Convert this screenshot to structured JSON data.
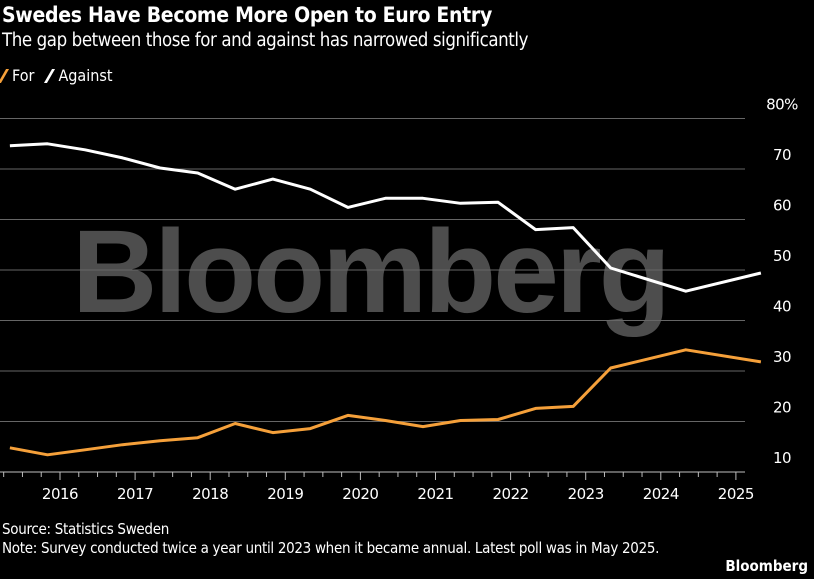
{
  "title": "Swedes Have Become More Open to Euro Entry",
  "subtitle": "The gap between those for and against has narrowed significantly",
  "source": "Source: Statistics Sweden",
  "note": "Note: Survey conducted twice a year until 2023 when it became annual. Latest poll was in May 2025.",
  "brand": "Bloomberg",
  "watermark": "Bloomberg",
  "chart_data": {
    "type": "line",
    "title": "Swedes Have Become More Open to Euro Entry",
    "subtitle": "The gap between those for and against has narrowed significantly",
    "x": [
      "2015-05",
      "2015-11",
      "2016-05",
      "2016-11",
      "2017-05",
      "2017-11",
      "2018-05",
      "2018-11",
      "2019-05",
      "2019-11",
      "2020-05",
      "2020-11",
      "2021-05",
      "2021-11",
      "2022-05",
      "2022-11",
      "2023-05",
      "2024-05",
      "2025-05"
    ],
    "series": [
      {
        "name": "For",
        "color": "#f5a03a",
        "values": [
          14.8,
          13.4,
          14.4,
          15.4,
          16.2,
          16.8,
          19.6,
          17.8,
          18.6,
          21.2,
          20.2,
          19.0,
          20.2,
          20.4,
          22.6,
          23.0,
          30.6,
          34.2,
          31.8
        ]
      },
      {
        "name": "Against",
        "color": "#ffffff",
        "values": [
          74.6,
          75.0,
          73.8,
          72.2,
          70.2,
          69.2,
          66.0,
          68.0,
          66.0,
          62.4,
          64.2,
          64.2,
          63.2,
          63.4,
          58.0,
          58.4,
          50.4,
          45.8,
          49.4
        ]
      }
    ],
    "xticks": [
      "2016",
      "2017",
      "2018",
      "2019",
      "2020",
      "2021",
      "2022",
      "2023",
      "2024",
      "2025"
    ],
    "yticks": [
      "10",
      "20",
      "30",
      "40",
      "50",
      "60",
      "70",
      "80%"
    ],
    "ylim": [
      10,
      80
    ],
    "grid": true,
    "legend": "top-left",
    "yaxis_side": "right"
  }
}
